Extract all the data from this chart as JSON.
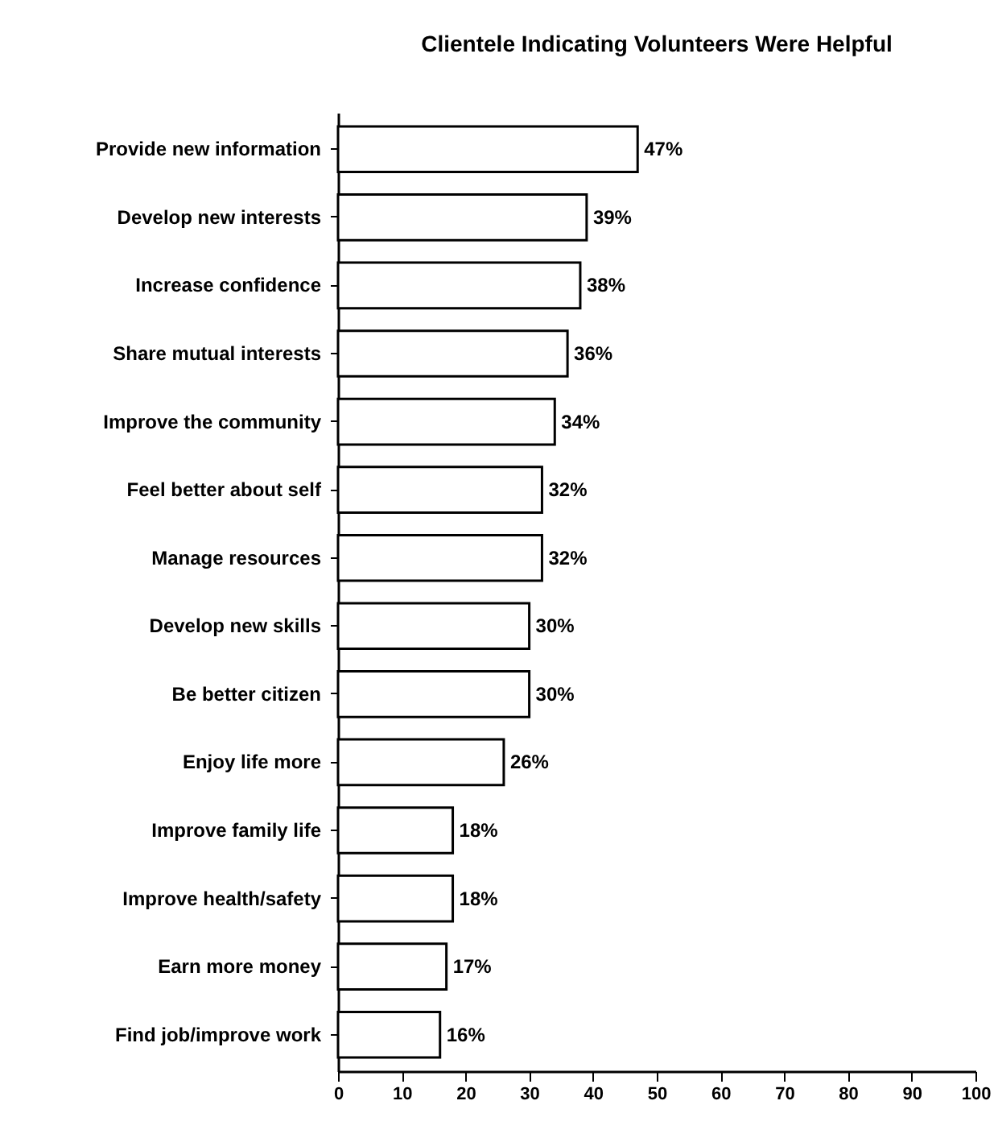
{
  "chart_data": {
    "type": "bar",
    "orientation": "horizontal",
    "title": "Clientele Indicating Volunteers Were Helpful",
    "categories": [
      "Provide new information",
      "Develop new interests",
      "Increase confidence",
      "Share mutual interests",
      "Improve the community",
      "Feel better about self",
      "Manage resources",
      "Develop new skills",
      "Be better citizen",
      "Enjoy life more",
      "Improve family life",
      "Improve health/safety",
      "Earn more money",
      "Find job/improve work"
    ],
    "values": [
      47,
      39,
      38,
      36,
      34,
      32,
      32,
      30,
      30,
      26,
      18,
      18,
      17,
      16
    ],
    "value_labels": [
      "47%",
      "39%",
      "38%",
      "36%",
      "34%",
      "32%",
      "32%",
      "30%",
      "30%",
      "26%",
      "18%",
      "18%",
      "17%",
      "16%"
    ],
    "color": "#ffffff",
    "xlim": [
      0,
      100
    ],
    "xticks": [
      0,
      10,
      20,
      30,
      40,
      50,
      60,
      70,
      80,
      90,
      100
    ],
    "grid": false
  }
}
